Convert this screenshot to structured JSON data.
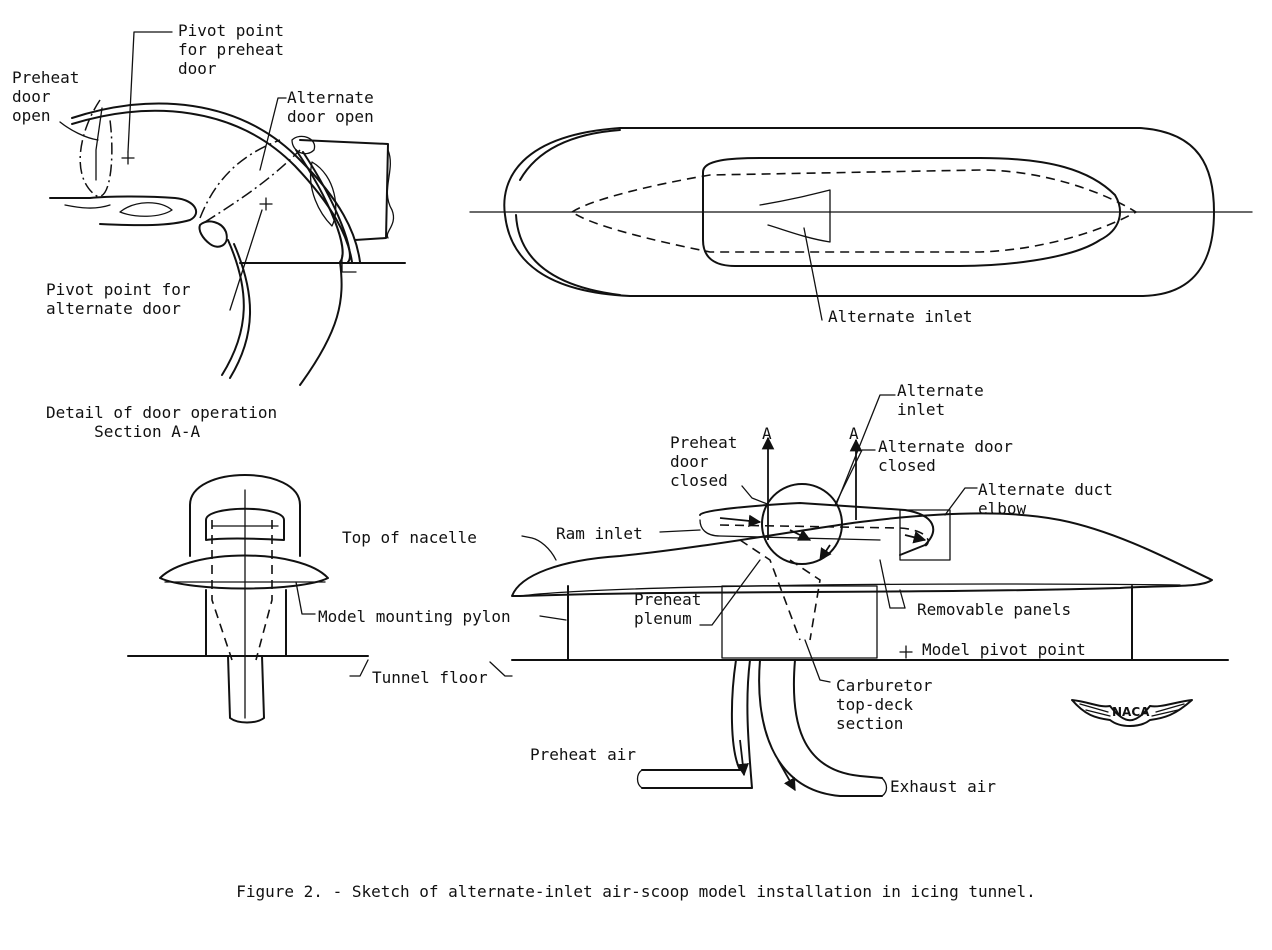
{
  "labels": {
    "pivot_preheat": "Pivot point\nfor preheat\ndoor",
    "preheat_open": "Preheat\ndoor\nopen",
    "alternate_open": "Alternate\ndoor open",
    "pivot_alternate": "Pivot point for\nalternate door",
    "detail_title": "Detail of door operation\n     Section A-A",
    "alternate_inlet_top": "Alternate inlet",
    "alternate_inlet_side": "Alternate\ninlet",
    "a_left": "A",
    "a_right": "A",
    "alternate_door_closed": "Alternate door\nclosed",
    "preheat_door_closed": "Preheat\ndoor\nclosed",
    "alternate_duct_elbow": "Alternate duct\nelbow",
    "ram_inlet": "Ram inlet",
    "top_of_nacelle": "Top of nacelle",
    "preheat_plenum": "Preheat\nplenum",
    "removable_panels": "Removable panels",
    "model_mounting_pylon": "Model mounting pylon",
    "model_pivot_point": "Model pivot point",
    "tunnel_floor": "Tunnel floor",
    "carburetor": "Carburetor\ntop-deck\nsection",
    "preheat_air": "Preheat air",
    "exhaust_air": "Exhaust air"
  },
  "logo": "NACA",
  "caption": "Figure 2. - Sketch of alternate-inlet air-scoop model installation in icing tunnel."
}
